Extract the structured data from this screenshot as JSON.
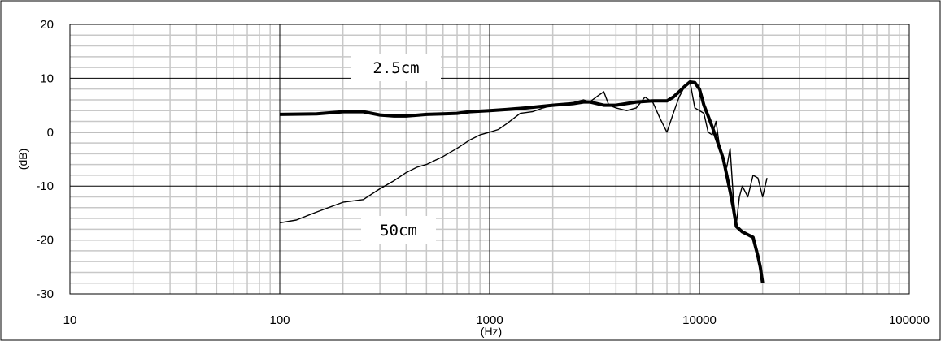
{
  "chart_data": {
    "type": "line",
    "title": "",
    "xlabel": "(Hz)",
    "ylabel": "(dB)",
    "xscale": "log",
    "xlim": [
      10,
      100000
    ],
    "ylim": [
      -30,
      20
    ],
    "x_ticks": [
      "10",
      "100",
      "1000",
      "10000",
      "100000"
    ],
    "y_ticks": [
      "20",
      "10",
      "0",
      "-10",
      "-20",
      "-30"
    ],
    "grid": true,
    "annotations": [
      "2.5cm",
      "50cm"
    ],
    "series": [
      {
        "name": "2.5cm",
        "style": "thick",
        "color": "#000000",
        "x": [
          100,
          150,
          200,
          250,
          300,
          350,
          400,
          500,
          600,
          700,
          800,
          1000,
          1200,
          1500,
          2000,
          2500,
          2800,
          3000,
          3500,
          4000,
          5000,
          6000,
          7000,
          7500,
          8000,
          8500,
          9000,
          9500,
          10000,
          10500,
          11000,
          11500,
          12000,
          12500,
          13000,
          13500,
          14000,
          14500,
          15000,
          16000,
          17000,
          18000,
          19000,
          19500,
          20000
        ],
        "y": [
          3.3,
          3.4,
          3.8,
          3.8,
          3.2,
          3.0,
          3.0,
          3.3,
          3.4,
          3.5,
          3.8,
          4.0,
          4.2,
          4.5,
          5.0,
          5.3,
          5.6,
          5.6,
          5.0,
          5.0,
          5.6,
          5.8,
          5.8,
          6.5,
          7.5,
          8.5,
          9.3,
          9.2,
          8.0,
          5.0,
          3.0,
          1.0,
          -1.0,
          -3.0,
          -5.0,
          -8.0,
          -11.0,
          -14.0,
          -17.5,
          -18.5,
          -19.0,
          -19.5,
          -23.0,
          -25.0,
          -28.0
        ]
      },
      {
        "name": "50cm",
        "style": "thin",
        "color": "#000000",
        "x": [
          100,
          120,
          150,
          200,
          250,
          300,
          350,
          400,
          450,
          500,
          600,
          700,
          800,
          900,
          1000,
          1100,
          1200,
          1400,
          1600,
          1800,
          2000,
          2200,
          2500,
          2800,
          3000,
          3300,
          3500,
          3700,
          4000,
          4500,
          5000,
          5500,
          6000,
          6500,
          7000,
          7500,
          8000,
          8500,
          9000,
          9500,
          10000,
          10500,
          11000,
          11500,
          12000,
          12500,
          13000,
          13500,
          14000,
          14500,
          15000,
          15500,
          16000,
          17000,
          18000,
          19000,
          20000,
          21000
        ],
        "y": [
          -16.8,
          -16.3,
          -14.8,
          -13.0,
          -12.5,
          -10.5,
          -9.0,
          -7.5,
          -6.5,
          -6.0,
          -4.5,
          -3.0,
          -1.5,
          -0.5,
          0.0,
          0.5,
          1.5,
          3.5,
          3.8,
          4.5,
          5.0,
          5.2,
          5.5,
          6.0,
          5.6,
          6.8,
          7.5,
          5.0,
          4.5,
          4.0,
          4.5,
          6.5,
          5.5,
          2.5,
          0.0,
          3.5,
          6.5,
          8.5,
          9.5,
          4.5,
          4.0,
          3.5,
          0.0,
          -0.5,
          2.0,
          -3.0,
          -5.0,
          -6.5,
          -3.0,
          -12.0,
          -17.0,
          -12.0,
          -10.0,
          -12.0,
          -8.0,
          -8.5,
          -12.0,
          -8.5
        ]
      }
    ]
  }
}
